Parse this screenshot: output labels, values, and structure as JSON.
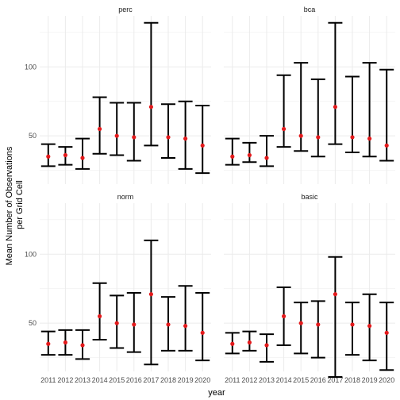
{
  "chart_data": {
    "type": "errorbar",
    "x_label": "year",
    "y_label_lines": [
      "Mean Number of Observations",
      "per Grid Cell"
    ],
    "categories": [
      "2011",
      "2012",
      "2013",
      "2014",
      "2015",
      "2016",
      "2017",
      "2018",
      "2019",
      "2020"
    ],
    "y_ticks": [
      50,
      100
    ],
    "y_range": [
      15,
      137
    ],
    "grid": true,
    "colors": {
      "point": "#e41a1c",
      "bar": "#000000",
      "grid": "#ebebeb"
    },
    "panels": [
      {
        "name": "perc",
        "mean": [
          35,
          36,
          34,
          55,
          50,
          49,
          71,
          49,
          48,
          43
        ],
        "lower": [
          28,
          29,
          26,
          37,
          36,
          32,
          43,
          34,
          26,
          23
        ],
        "upper": [
          44,
          42,
          48,
          78,
          74,
          74,
          132,
          73,
          75,
          72
        ]
      },
      {
        "name": "bca",
        "mean": [
          35,
          36,
          34,
          55,
          50,
          49,
          71,
          49,
          48,
          43
        ],
        "lower": [
          29,
          31,
          28,
          42,
          39,
          35,
          44,
          38,
          35,
          32
        ],
        "upper": [
          48,
          45,
          50,
          94,
          103,
          91,
          132,
          93,
          103,
          98
        ]
      },
      {
        "name": "norm",
        "mean": [
          35,
          36,
          34,
          55,
          50,
          49,
          71,
          49,
          48,
          43
        ],
        "lower": [
          27,
          27,
          24,
          38,
          32,
          29,
          20,
          30,
          30,
          23
        ],
        "upper": [
          44,
          45,
          45,
          79,
          70,
          72,
          110,
          69,
          77,
          72
        ]
      },
      {
        "name": "basic",
        "mean": [
          35,
          36,
          34,
          55,
          50,
          49,
          71,
          49,
          48,
          43
        ],
        "lower": [
          28,
          30,
          22,
          34,
          28,
          25,
          11,
          27,
          23,
          16
        ],
        "upper": [
          43,
          44,
          42,
          76,
          65,
          66,
          98,
          65,
          71,
          65
        ]
      }
    ]
  }
}
